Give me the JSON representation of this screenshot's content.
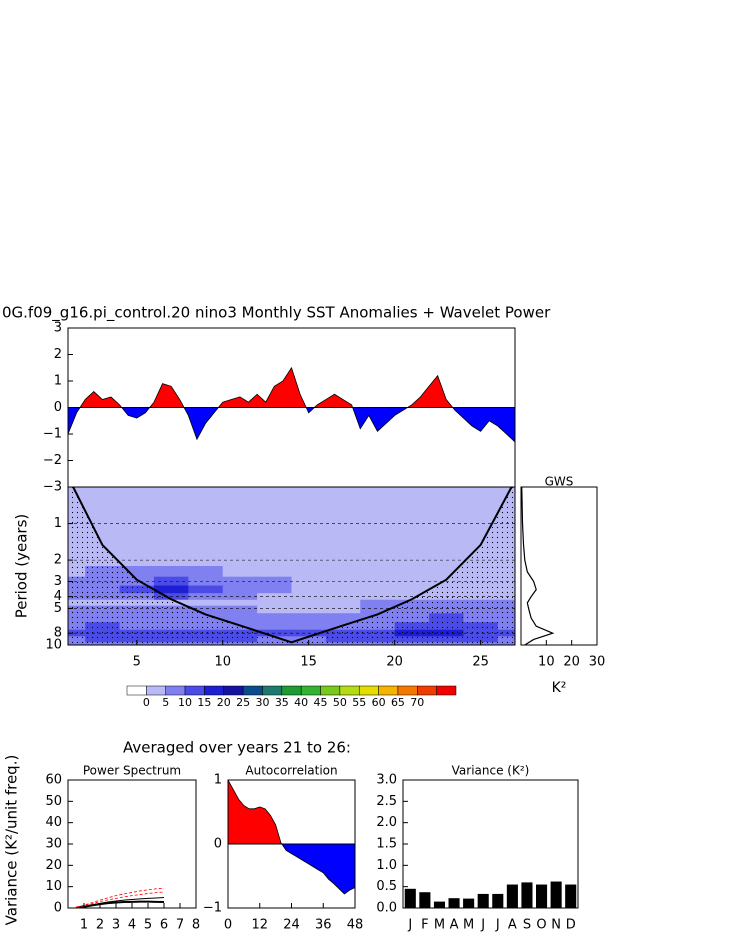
{
  "section_title": "Averaged over years 21 to 26:",
  "chart_data": [
    {
      "type": "area",
      "title": "0G.f09_g16.pi_control.20 nino3 Monthly SST Anomalies + Wavelet Power",
      "x": [
        1,
        1.5,
        2,
        2.5,
        3,
        3.5,
        4,
        4.5,
        5,
        5.5,
        6,
        6.5,
        7,
        7.5,
        8,
        8.5,
        9,
        9.5,
        10,
        10.5,
        11,
        11.5,
        12,
        12.5,
        13,
        13.5,
        14,
        14.5,
        15,
        15.5,
        16,
        16.5,
        17,
        17.5,
        18,
        18.5,
        19,
        19.5,
        20,
        20.5,
        21,
        21.5,
        22,
        22.5,
        23,
        23.5,
        24,
        24.5,
        25,
        25.5,
        26,
        26.5,
        27
      ],
      "values": [
        -1.0,
        -0.2,
        0.3,
        0.6,
        0.3,
        0.4,
        0.1,
        -0.3,
        -0.4,
        -0.2,
        0.2,
        0.9,
        0.8,
        0.3,
        -0.3,
        -1.2,
        -0.6,
        -0.2,
        0.2,
        0.3,
        0.4,
        0.2,
        0.5,
        0.2,
        0.8,
        1.0,
        1.5,
        0.5,
        -0.2,
        0.1,
        0.3,
        0.5,
        0.3,
        0.1,
        -0.8,
        -0.3,
        -0.9,
        -0.6,
        -0.3,
        -0.1,
        0.1,
        0.4,
        0.8,
        1.2,
        0.3,
        -0.1,
        -0.4,
        -0.7,
        -0.9,
        -0.5,
        -0.7,
        -1.0,
        -1.3
      ],
      "positive_color": "#ff0000",
      "negative_color": "#0000ff",
      "xlim": [
        1,
        27
      ],
      "ylim": [
        -3,
        3
      ],
      "yticks": [
        3,
        2,
        1,
        0,
        {
          "value": -1,
          "label": "−1"
        },
        {
          "value": -2,
          "label": "−2"
        },
        {
          "value": -3,
          "label": "−3"
        }
      ]
    },
    {
      "type": "contour",
      "ylabel": "Period (years)",
      "x": [
        1,
        3,
        5,
        7,
        9,
        11,
        13,
        15,
        17,
        19,
        21,
        23,
        25,
        27
      ],
      "y": [
        0.5,
        1,
        1.5,
        2,
        2.5,
        3,
        3.5,
        4,
        4.5,
        5,
        6,
        7,
        8,
        9,
        10
      ],
      "z": [
        [
          2,
          2,
          2,
          2,
          2,
          2,
          2,
          2,
          2,
          2,
          2,
          2,
          2,
          2
        ],
        [
          2,
          2,
          2,
          2,
          2,
          2,
          2,
          2,
          2,
          2,
          2,
          2,
          2,
          2
        ],
        [
          2,
          2,
          2,
          2,
          2,
          2,
          2,
          2,
          2,
          2,
          2,
          2,
          2,
          2
        ],
        [
          3,
          3,
          3,
          3,
          3,
          3,
          3,
          3,
          3,
          3,
          3,
          3,
          3,
          3
        ],
        [
          4,
          6,
          7,
          8,
          7,
          4,
          3,
          3,
          3,
          3,
          3,
          3,
          3,
          3
        ],
        [
          6,
          7,
          9,
          12,
          9,
          7,
          6,
          3,
          3,
          3,
          3,
          3,
          3,
          3
        ],
        [
          7,
          8,
          12,
          16,
          12,
          8,
          6,
          4,
          4,
          4,
          4,
          4,
          4,
          4
        ],
        [
          6,
          7,
          9,
          11,
          8,
          6,
          4,
          4,
          4,
          4,
          4,
          4,
          4,
          4
        ],
        [
          4,
          4,
          4,
          4,
          4,
          4,
          4,
          4,
          4,
          5,
          6,
          7,
          7,
          7
        ],
        [
          6,
          7,
          7,
          6,
          5,
          5,
          4,
          4,
          4,
          5,
          7,
          8,
          8,
          7
        ],
        [
          7,
          8,
          8,
          8,
          7,
          6,
          5,
          5,
          6,
          7,
          9,
          10,
          9,
          8
        ],
        [
          9,
          10,
          9,
          9,
          9,
          8,
          7,
          7,
          8,
          9,
          11,
          12,
          10,
          9
        ],
        [
          12,
          14,
          13,
          13,
          13,
          12,
          11,
          11,
          12,
          13,
          16,
          17,
          13,
          11
        ],
        [
          9,
          11,
          11,
          11,
          11,
          10,
          9,
          9,
          10,
          11,
          12,
          12,
          10,
          9
        ],
        [
          7,
          8,
          8,
          8,
          8,
          7,
          7,
          7,
          7,
          8,
          8,
          8,
          8,
          7
        ]
      ],
      "xlim": [
        1,
        27
      ],
      "ylim": [
        0.5,
        10
      ],
      "ylog": true,
      "yreverse": true,
      "xticks": [
        5,
        10,
        15,
        20,
        25
      ],
      "yticks": [
        1,
        2,
        3,
        4,
        5,
        8,
        10
      ],
      "grid": true,
      "coi": {
        "x": [
          1.3,
          3,
          5,
          7,
          9,
          11,
          14,
          17,
          19,
          21,
          23,
          25,
          26.8
        ],
        "values": [
          0.5,
          1.5,
          2.9,
          4.2,
          5.6,
          6.9,
          9.5,
          6.9,
          5.6,
          4.2,
          2.9,
          1.5,
          0.5
        ]
      },
      "coi_color": "#000000",
      "levels": [
        0,
        5,
        10,
        15,
        20,
        25,
        30,
        35,
        40,
        45,
        50,
        55,
        60,
        65,
        70
      ],
      "level_colors": [
        "#ffffff",
        "#b9b9f6",
        "#8080f0",
        "#4b4be8",
        "#1e1ed2",
        "#1414a0",
        "#0a4c8c",
        "#1e7a6e",
        "#1e9b32",
        "#32b432",
        "#78c81e",
        "#b4dc14",
        "#e6dc00",
        "#f5b400",
        "#f57800",
        "#f03c00",
        "#f00000"
      ]
    },
    {
      "type": "line",
      "title": "GWS",
      "xlabel": "K²",
      "y": [
        0.5,
        1,
        1.5,
        2,
        2.5,
        3,
        3.5,
        4,
        4.5,
        5,
        6,
        7,
        8,
        9,
        10
      ],
      "values": [
        0.3,
        0.6,
        1,
        1.5,
        2.5,
        5,
        6,
        4,
        2.5,
        3,
        4,
        6,
        12.5,
        5,
        1.5
      ],
      "color": "#000000",
      "xlim": [
        0,
        30
      ],
      "xticks": [
        10,
        20,
        30
      ],
      "ylim": [
        0.5,
        10
      ],
      "ylog": true,
      "yreverse": true
    },
    {
      "type": "line",
      "title": "Power Spectrum",
      "ylabel": "Variance (K²/unit freq.)",
      "x": [
        0.5,
        1,
        1.5,
        2,
        2.5,
        3,
        3.5,
        4,
        4.5,
        5,
        5.5,
        6
      ],
      "series": [
        {
          "color": "#000000",
          "width": 2,
          "values": [
            0.2,
            0.6,
            1.2,
            1.8,
            2.3,
            2.6,
            2.8,
            2.9,
            3.0,
            3.0,
            2.9,
            2.8
          ]
        },
        {
          "color": "#000000",
          "width": 1,
          "values": [
            0.2,
            0.8,
            1.5,
            2.2,
            2.8,
            3.3,
            3.7,
            4.0,
            4.3,
            4.5,
            4.7,
            4.9
          ]
        },
        {
          "color": "#ff0000",
          "width": 0.8,
          "dash": true,
          "values": [
            0.3,
            1,
            2,
            3,
            3.8,
            4.5,
            5.2,
            5.8,
            6.3,
            6.8,
            7.2,
            7.5
          ]
        },
        {
          "color": "#ff0000",
          "width": 0.8,
          "dash": true,
          "values": [
            0.4,
            1.3,
            2.5,
            3.7,
            4.8,
            5.8,
            6.6,
            7.3,
            8,
            8.5,
            9,
            9.3
          ]
        }
      ],
      "xlim": [
        0,
        8
      ],
      "xticks": [
        1,
        2,
        3,
        4,
        5,
        6,
        7,
        8
      ],
      "ylim": [
        0,
        60
      ],
      "yticks": [
        0,
        10,
        20,
        30,
        40,
        50,
        60
      ]
    },
    {
      "type": "area",
      "title": "Autocorrelation",
      "x": [
        0,
        2,
        4,
        6,
        8,
        10,
        12,
        14,
        16,
        18,
        20,
        22,
        24,
        26,
        28,
        30,
        32,
        34,
        36,
        38,
        40,
        42,
        44,
        46,
        48
      ],
      "values": [
        1.0,
        0.85,
        0.7,
        0.6,
        0.55,
        0.55,
        0.58,
        0.55,
        0.45,
        0.3,
        0.02,
        -0.1,
        -0.15,
        -0.2,
        -0.25,
        -0.3,
        -0.35,
        -0.4,
        -0.45,
        -0.55,
        -0.62,
        -0.7,
        -0.78,
        -0.72,
        -0.68
      ],
      "positive_color": "#ff0000",
      "negative_color": "#0000ff",
      "xlim": [
        0,
        48
      ],
      "xticks": [
        0,
        12,
        24,
        36,
        48
      ],
      "ylim": [
        -1,
        1
      ],
      "yticks": [
        {
          "value": -1,
          "label": "−1"
        },
        0,
        1
      ]
    },
    {
      "type": "bar",
      "title": "Variance (K²)",
      "categories": [
        "J",
        "F",
        "M",
        "A",
        "M",
        "J",
        "J",
        "A",
        "S",
        "O",
        "N",
        "D"
      ],
      "values": [
        0.45,
        0.37,
        0.15,
        0.23,
        0.22,
        0.33,
        0.33,
        0.55,
        0.6,
        0.55,
        0.62,
        0.55
      ],
      "color": "#000000",
      "ylim": [
        0,
        3
      ],
      "yticks": [
        {
          "value": 0,
          "label": "0.0"
        },
        {
          "value": 0.5,
          "label": "0.5"
        },
        {
          "value": 1,
          "label": "1.0"
        },
        {
          "value": 1.5,
          "label": "1.5"
        },
        {
          "value": 2,
          "label": "2.0"
        },
        {
          "value": 2.5,
          "label": "2.5"
        },
        {
          "value": 3,
          "label": "3.0"
        }
      ]
    }
  ]
}
